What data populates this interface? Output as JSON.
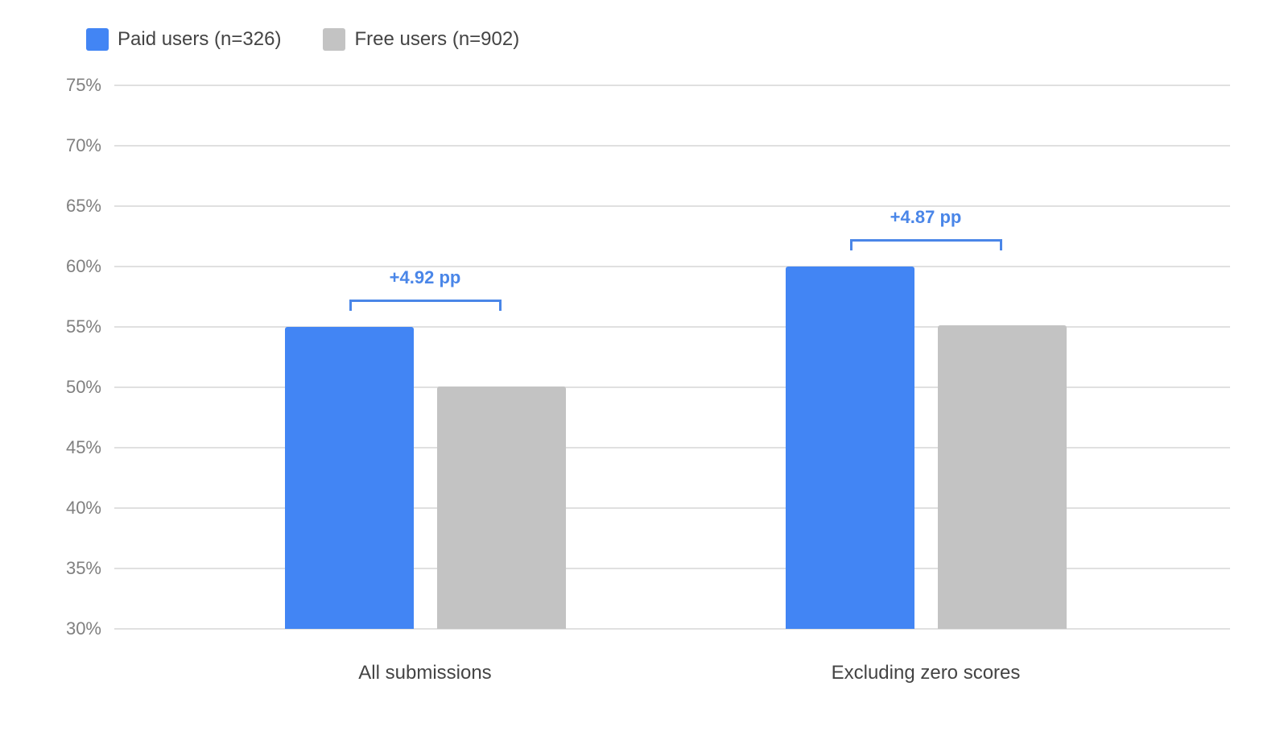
{
  "legend": {
    "items": [
      {
        "label": "Paid users (n=326)",
        "color": "#4285f4"
      },
      {
        "label": "Free users (n=902)",
        "color": "#c3c3c3"
      }
    ]
  },
  "colors": {
    "paid": "#4285f4",
    "free": "#c3c3c3",
    "annotation": "#4a86e8",
    "gridline": "#e0e0e0",
    "tick_text": "#808080",
    "label_text": "#444444"
  },
  "chart_data": {
    "type": "bar",
    "title": "",
    "xlabel": "",
    "ylabel": "",
    "categories": [
      "All submissions",
      "Excluding zero scores"
    ],
    "series": [
      {
        "name": "Paid users (n=326)",
        "values": [
          55.0,
          60.0
        ]
      },
      {
        "name": "Free users (n=902)",
        "values": [
          50.08,
          55.13
        ]
      }
    ],
    "ylim": [
      30,
      75
    ],
    "yticks": [
      "30%",
      "35%",
      "40%",
      "45%",
      "50%",
      "55%",
      "60%",
      "65%",
      "70%",
      "75%"
    ],
    "grid": true,
    "legend_position": "top-left",
    "annotations": [
      {
        "category": "All submissions",
        "text": "+4.92 pp"
      },
      {
        "category": "Excluding zero scores",
        "text": "+4.87 pp"
      }
    ]
  }
}
